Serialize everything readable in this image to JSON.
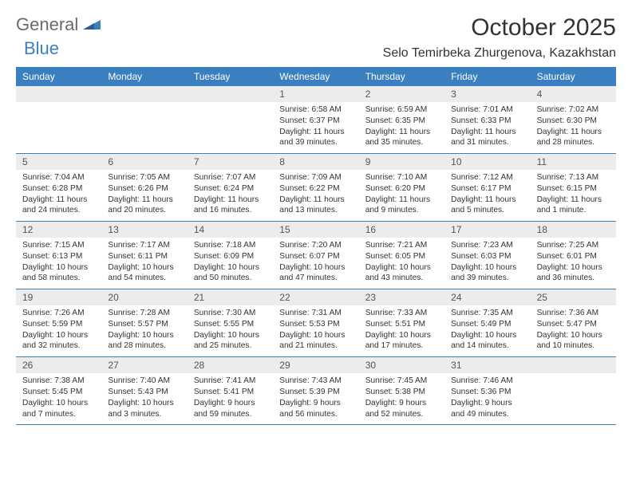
{
  "logo": {
    "text1": "General",
    "text2": "Blue"
  },
  "title": "October 2025",
  "location": "Selo Temirbeka Zhurgenova, Kazakhstan",
  "colors": {
    "header_bg": "#3a7fc0",
    "header_text": "#ffffff",
    "daynum_bg": "#ececec",
    "border": "#3a7fc0",
    "logo_gray": "#6a6a6a",
    "logo_blue": "#3a7fc0",
    "body_text": "#333333",
    "page_bg": "#ffffff"
  },
  "dayNames": [
    "Sunday",
    "Monday",
    "Tuesday",
    "Wednesday",
    "Thursday",
    "Friday",
    "Saturday"
  ],
  "weeks": [
    [
      {
        "blank": true
      },
      {
        "blank": true
      },
      {
        "blank": true
      },
      {
        "day": "1",
        "sunrise": "Sunrise: 6:58 AM",
        "sunset": "Sunset: 6:37 PM",
        "daylight1": "Daylight: 11 hours",
        "daylight2": "and 39 minutes."
      },
      {
        "day": "2",
        "sunrise": "Sunrise: 6:59 AM",
        "sunset": "Sunset: 6:35 PM",
        "daylight1": "Daylight: 11 hours",
        "daylight2": "and 35 minutes."
      },
      {
        "day": "3",
        "sunrise": "Sunrise: 7:01 AM",
        "sunset": "Sunset: 6:33 PM",
        "daylight1": "Daylight: 11 hours",
        "daylight2": "and 31 minutes."
      },
      {
        "day": "4",
        "sunrise": "Sunrise: 7:02 AM",
        "sunset": "Sunset: 6:30 PM",
        "daylight1": "Daylight: 11 hours",
        "daylight2": "and 28 minutes."
      }
    ],
    [
      {
        "day": "5",
        "sunrise": "Sunrise: 7:04 AM",
        "sunset": "Sunset: 6:28 PM",
        "daylight1": "Daylight: 11 hours",
        "daylight2": "and 24 minutes."
      },
      {
        "day": "6",
        "sunrise": "Sunrise: 7:05 AM",
        "sunset": "Sunset: 6:26 PM",
        "daylight1": "Daylight: 11 hours",
        "daylight2": "and 20 minutes."
      },
      {
        "day": "7",
        "sunrise": "Sunrise: 7:07 AM",
        "sunset": "Sunset: 6:24 PM",
        "daylight1": "Daylight: 11 hours",
        "daylight2": "and 16 minutes."
      },
      {
        "day": "8",
        "sunrise": "Sunrise: 7:09 AM",
        "sunset": "Sunset: 6:22 PM",
        "daylight1": "Daylight: 11 hours",
        "daylight2": "and 13 minutes."
      },
      {
        "day": "9",
        "sunrise": "Sunrise: 7:10 AM",
        "sunset": "Sunset: 6:20 PM",
        "daylight1": "Daylight: 11 hours",
        "daylight2": "and 9 minutes."
      },
      {
        "day": "10",
        "sunrise": "Sunrise: 7:12 AM",
        "sunset": "Sunset: 6:17 PM",
        "daylight1": "Daylight: 11 hours",
        "daylight2": "and 5 minutes."
      },
      {
        "day": "11",
        "sunrise": "Sunrise: 7:13 AM",
        "sunset": "Sunset: 6:15 PM",
        "daylight1": "Daylight: 11 hours",
        "daylight2": "and 1 minute."
      }
    ],
    [
      {
        "day": "12",
        "sunrise": "Sunrise: 7:15 AM",
        "sunset": "Sunset: 6:13 PM",
        "daylight1": "Daylight: 10 hours",
        "daylight2": "and 58 minutes."
      },
      {
        "day": "13",
        "sunrise": "Sunrise: 7:17 AM",
        "sunset": "Sunset: 6:11 PM",
        "daylight1": "Daylight: 10 hours",
        "daylight2": "and 54 minutes."
      },
      {
        "day": "14",
        "sunrise": "Sunrise: 7:18 AM",
        "sunset": "Sunset: 6:09 PM",
        "daylight1": "Daylight: 10 hours",
        "daylight2": "and 50 minutes."
      },
      {
        "day": "15",
        "sunrise": "Sunrise: 7:20 AM",
        "sunset": "Sunset: 6:07 PM",
        "daylight1": "Daylight: 10 hours",
        "daylight2": "and 47 minutes."
      },
      {
        "day": "16",
        "sunrise": "Sunrise: 7:21 AM",
        "sunset": "Sunset: 6:05 PM",
        "daylight1": "Daylight: 10 hours",
        "daylight2": "and 43 minutes."
      },
      {
        "day": "17",
        "sunrise": "Sunrise: 7:23 AM",
        "sunset": "Sunset: 6:03 PM",
        "daylight1": "Daylight: 10 hours",
        "daylight2": "and 39 minutes."
      },
      {
        "day": "18",
        "sunrise": "Sunrise: 7:25 AM",
        "sunset": "Sunset: 6:01 PM",
        "daylight1": "Daylight: 10 hours",
        "daylight2": "and 36 minutes."
      }
    ],
    [
      {
        "day": "19",
        "sunrise": "Sunrise: 7:26 AM",
        "sunset": "Sunset: 5:59 PM",
        "daylight1": "Daylight: 10 hours",
        "daylight2": "and 32 minutes."
      },
      {
        "day": "20",
        "sunrise": "Sunrise: 7:28 AM",
        "sunset": "Sunset: 5:57 PM",
        "daylight1": "Daylight: 10 hours",
        "daylight2": "and 28 minutes."
      },
      {
        "day": "21",
        "sunrise": "Sunrise: 7:30 AM",
        "sunset": "Sunset: 5:55 PM",
        "daylight1": "Daylight: 10 hours",
        "daylight2": "and 25 minutes."
      },
      {
        "day": "22",
        "sunrise": "Sunrise: 7:31 AM",
        "sunset": "Sunset: 5:53 PM",
        "daylight1": "Daylight: 10 hours",
        "daylight2": "and 21 minutes."
      },
      {
        "day": "23",
        "sunrise": "Sunrise: 7:33 AM",
        "sunset": "Sunset: 5:51 PM",
        "daylight1": "Daylight: 10 hours",
        "daylight2": "and 17 minutes."
      },
      {
        "day": "24",
        "sunrise": "Sunrise: 7:35 AM",
        "sunset": "Sunset: 5:49 PM",
        "daylight1": "Daylight: 10 hours",
        "daylight2": "and 14 minutes."
      },
      {
        "day": "25",
        "sunrise": "Sunrise: 7:36 AM",
        "sunset": "Sunset: 5:47 PM",
        "daylight1": "Daylight: 10 hours",
        "daylight2": "and 10 minutes."
      }
    ],
    [
      {
        "day": "26",
        "sunrise": "Sunrise: 7:38 AM",
        "sunset": "Sunset: 5:45 PM",
        "daylight1": "Daylight: 10 hours",
        "daylight2": "and 7 minutes."
      },
      {
        "day": "27",
        "sunrise": "Sunrise: 7:40 AM",
        "sunset": "Sunset: 5:43 PM",
        "daylight1": "Daylight: 10 hours",
        "daylight2": "and 3 minutes."
      },
      {
        "day": "28",
        "sunrise": "Sunrise: 7:41 AM",
        "sunset": "Sunset: 5:41 PM",
        "daylight1": "Daylight: 9 hours",
        "daylight2": "and 59 minutes."
      },
      {
        "day": "29",
        "sunrise": "Sunrise: 7:43 AM",
        "sunset": "Sunset: 5:39 PM",
        "daylight1": "Daylight: 9 hours",
        "daylight2": "and 56 minutes."
      },
      {
        "day": "30",
        "sunrise": "Sunrise: 7:45 AM",
        "sunset": "Sunset: 5:38 PM",
        "daylight1": "Daylight: 9 hours",
        "daylight2": "and 52 minutes."
      },
      {
        "day": "31",
        "sunrise": "Sunrise: 7:46 AM",
        "sunset": "Sunset: 5:36 PM",
        "daylight1": "Daylight: 9 hours",
        "daylight2": "and 49 minutes."
      },
      {
        "blank": true
      }
    ]
  ]
}
